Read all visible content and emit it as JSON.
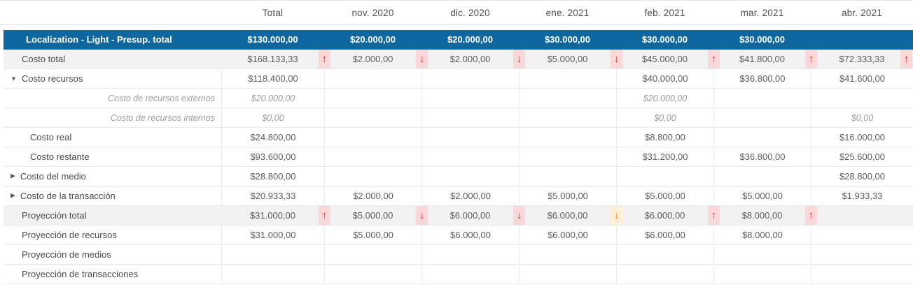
{
  "colors": {
    "budget_row_bg": "#0e679e",
    "summary_row_bg": "#f2f2f2",
    "trend_red": "#e42a2e",
    "trend_red_bg": "#fad7d9",
    "trend_orange": "#f5831f",
    "trend_orange_bg": "#fdf0d4",
    "grid_line": "#e9e9e9",
    "text": "#4a4a4a"
  },
  "icons": {
    "expander_open": "▼",
    "expander_closed": "▶",
    "trend_up": "↑",
    "trend_down": "↓"
  },
  "table": {
    "columns": [
      "",
      "Total",
      "nov. 2020",
      "dic. 2020",
      "ene. 2021",
      "feb. 2021",
      "mar. 2021",
      "abr. 2021"
    ],
    "rows": [
      {
        "name": "budget-total",
        "label": "Localization - Light - Presup. total",
        "style": "blue",
        "indent": "blue",
        "expander": null,
        "italic": false,
        "cells": [
          {
            "v": "$130.000,00"
          },
          {
            "v": "$20.000,00"
          },
          {
            "v": "$20.000,00"
          },
          {
            "v": "$30.000,00"
          },
          {
            "v": "$30.000,00"
          },
          {
            "v": "$30.000,00"
          },
          {
            "v": ""
          }
        ]
      },
      {
        "name": "costo-total",
        "label": "Costo total",
        "style": "summary",
        "indent": "l1",
        "expander": null,
        "italic": false,
        "cells": [
          {
            "v": "$168.133,33",
            "trend": "up-red"
          },
          {
            "v": "$2.000,00",
            "trend": "down-red"
          },
          {
            "v": "$2.000,00",
            "trend": "down-red"
          },
          {
            "v": "$5.000,00",
            "trend": "down-red"
          },
          {
            "v": "$45.000,00",
            "trend": "up-red"
          },
          {
            "v": "$41.800,00",
            "trend": "up-red"
          },
          {
            "v": "$72.333,33",
            "trend": "up-red"
          }
        ]
      },
      {
        "name": "costo-recursos",
        "label": "Costo recursos",
        "style": "plain",
        "indent": "exp",
        "expander": "open",
        "italic": false,
        "cells": [
          {
            "v": "$118.400,00"
          },
          {
            "v": ""
          },
          {
            "v": ""
          },
          {
            "v": ""
          },
          {
            "v": "$40.000,00"
          },
          {
            "v": "$36.800,00"
          },
          {
            "v": "$41.600,00"
          }
        ]
      },
      {
        "name": "costo-recursos-externos",
        "label": "Costo de recursos externos",
        "style": "plain",
        "indent": "right",
        "expander": null,
        "italic": true,
        "cells": [
          {
            "v": "$20.000,00"
          },
          {
            "v": ""
          },
          {
            "v": ""
          },
          {
            "v": ""
          },
          {
            "v": "$20.000,00"
          },
          {
            "v": ""
          },
          {
            "v": ""
          }
        ]
      },
      {
        "name": "costo-recursos-internos",
        "label": "Costo de recursos internos",
        "style": "plain",
        "indent": "right",
        "expander": null,
        "italic": true,
        "cells": [
          {
            "v": "$0,00"
          },
          {
            "v": ""
          },
          {
            "v": ""
          },
          {
            "v": ""
          },
          {
            "v": "$0,00"
          },
          {
            "v": ""
          },
          {
            "v": "$0,00"
          }
        ]
      },
      {
        "name": "costo-real",
        "label": "Costo real",
        "style": "plain",
        "indent": "deep",
        "expander": null,
        "italic": false,
        "cells": [
          {
            "v": "$24.800,00"
          },
          {
            "v": ""
          },
          {
            "v": ""
          },
          {
            "v": ""
          },
          {
            "v": "$8.800,00"
          },
          {
            "v": ""
          },
          {
            "v": "$16.000,00"
          }
        ]
      },
      {
        "name": "costo-restante",
        "label": "Costo restante",
        "style": "plain",
        "indent": "deep",
        "expander": null,
        "italic": false,
        "cells": [
          {
            "v": "$93.600,00"
          },
          {
            "v": ""
          },
          {
            "v": ""
          },
          {
            "v": ""
          },
          {
            "v": "$31.200,00"
          },
          {
            "v": "$36.800,00"
          },
          {
            "v": "$25.600,00"
          }
        ]
      },
      {
        "name": "costo-del-medio",
        "label": "Costo del medio",
        "style": "plain",
        "indent": "exp",
        "expander": "closed",
        "italic": false,
        "cells": [
          {
            "v": "$28.800,00"
          },
          {
            "v": ""
          },
          {
            "v": ""
          },
          {
            "v": ""
          },
          {
            "v": ""
          },
          {
            "v": ""
          },
          {
            "v": "$28.800,00"
          }
        ]
      },
      {
        "name": "costo-de-la-transaccion",
        "label": "Costo de la transacción",
        "style": "plain",
        "indent": "exp",
        "expander": "closed",
        "italic": false,
        "cells": [
          {
            "v": "$20.933,33"
          },
          {
            "v": "$2.000,00"
          },
          {
            "v": "$2.000,00"
          },
          {
            "v": "$5.000,00"
          },
          {
            "v": "$5.000,00"
          },
          {
            "v": "$5.000,00"
          },
          {
            "v": "$1.933,33"
          }
        ]
      },
      {
        "name": "proyeccion-total",
        "label": "Proyección total",
        "style": "summary",
        "indent": "l1",
        "expander": null,
        "italic": false,
        "cells": [
          {
            "v": "$31.000,00",
            "trend": "up-red"
          },
          {
            "v": "$5.000,00",
            "trend": "down-red"
          },
          {
            "v": "$6.000,00",
            "trend": "down-red"
          },
          {
            "v": "$6.000,00",
            "trend": "down-orange"
          },
          {
            "v": "$6.000,00",
            "trend": "up-red"
          },
          {
            "v": "$8.000,00",
            "trend": "up-red"
          },
          {
            "v": ""
          }
        ]
      },
      {
        "name": "proyeccion-de-recursos",
        "label": "Proyección de recursos",
        "style": "plain",
        "indent": "l1",
        "expander": null,
        "italic": false,
        "cells": [
          {
            "v": "$31.000,00"
          },
          {
            "v": "$5.000,00"
          },
          {
            "v": "$6.000,00"
          },
          {
            "v": "$6.000,00"
          },
          {
            "v": "$6.000,00"
          },
          {
            "v": "$8.000,00"
          },
          {
            "v": ""
          }
        ]
      },
      {
        "name": "proyeccion-de-medios",
        "label": "Proyección de medios",
        "style": "plain",
        "indent": "l1",
        "expander": null,
        "italic": false,
        "cells": [
          {
            "v": ""
          },
          {
            "v": ""
          },
          {
            "v": ""
          },
          {
            "v": ""
          },
          {
            "v": ""
          },
          {
            "v": ""
          },
          {
            "v": ""
          }
        ]
      },
      {
        "name": "proyeccion-de-transacciones",
        "label": "Proyección de transacciones",
        "style": "plain",
        "indent": "l1",
        "expander": null,
        "italic": false,
        "cells": [
          {
            "v": ""
          },
          {
            "v": ""
          },
          {
            "v": ""
          },
          {
            "v": ""
          },
          {
            "v": ""
          },
          {
            "v": ""
          },
          {
            "v": ""
          }
        ]
      }
    ]
  }
}
